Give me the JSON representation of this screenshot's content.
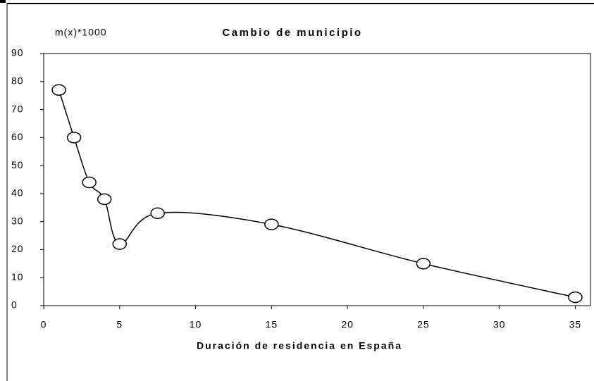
{
  "chart_data": {
    "type": "line",
    "title": "Cambio de municipio",
    "y_label": "m(x)*1000",
    "x_label": "Duración de residencia en España",
    "x": [
      1,
      2,
      3,
      4,
      5,
      7.5,
      15,
      25,
      35
    ],
    "series": [
      {
        "name": "Cambio de municipio",
        "color": "#000000",
        "values": [
          77,
          60,
          44,
          38,
          22,
          33,
          29,
          15,
          3
        ]
      }
    ],
    "xlim": [
      0,
      36
    ],
    "xticks": [
      0,
      5,
      10,
      15,
      20,
      25,
      30,
      35
    ],
    "ylim": [
      0,
      90
    ],
    "yticks": [
      0,
      10,
      20,
      30,
      40,
      50,
      60,
      70,
      80,
      90
    ],
    "smooth": true
  }
}
